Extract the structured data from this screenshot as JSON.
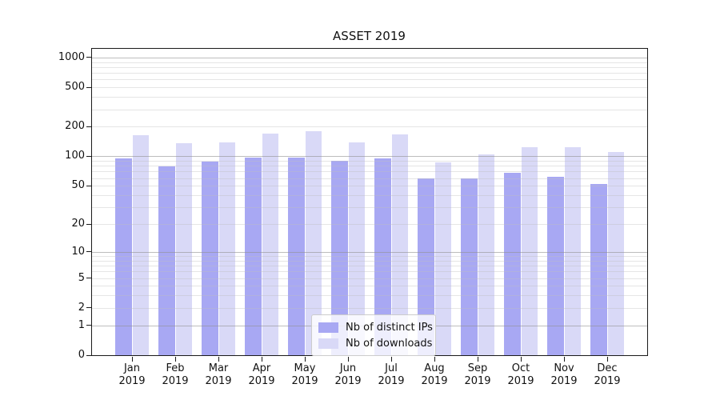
{
  "title": "ASSET 2019",
  "chart_data": {
    "type": "bar",
    "title": "ASSET 2019",
    "categories": [
      "Jan 2019",
      "Feb 2019",
      "Mar 2019",
      "Apr 2019",
      "May 2019",
      "Jun 2019",
      "Jul 2019",
      "Aug 2019",
      "Sep 2019",
      "Oct 2019",
      "Nov 2019",
      "Dec 2019"
    ],
    "series": [
      {
        "name": "Nb of distinct IPs",
        "color": "#a8a8f3",
        "values": [
          96,
          79,
          89,
          98,
          97,
          90,
          95,
          60,
          60,
          68,
          62,
          52
        ]
      },
      {
        "name": "Nb of downloads",
        "color": "#d9d9f7",
        "values": [
          165,
          137,
          138,
          170,
          180,
          138,
          167,
          87,
          105,
          123,
          125,
          111
        ]
      }
    ],
    "xlabel": "",
    "ylabel": "",
    "yscale": "log1p",
    "ylim": [
      0,
      1280
    ],
    "y_ticks": [
      0,
      1,
      2,
      5,
      10,
      20,
      50,
      100,
      200,
      500,
      1000
    ],
    "grid": "both",
    "legend_position": "lower center"
  },
  "legend": {
    "items": [
      {
        "label": "Nb of distinct IPs",
        "color": "#a8a8f3"
      },
      {
        "label": "Nb of downloads",
        "color": "#d9d9f7"
      }
    ]
  },
  "colors": {
    "bar_ips": "#a8a8f3",
    "bar_downloads": "#d9d9f7",
    "axis": "#1a1a1a",
    "grid_major": "rgba(145,145,145,0.6)",
    "grid_minor": "rgba(190,190,190,0.4)",
    "text": "#111111",
    "legend_border": "#cccccc",
    "legend_bg": "rgba(255,255,255,0.8)"
  }
}
